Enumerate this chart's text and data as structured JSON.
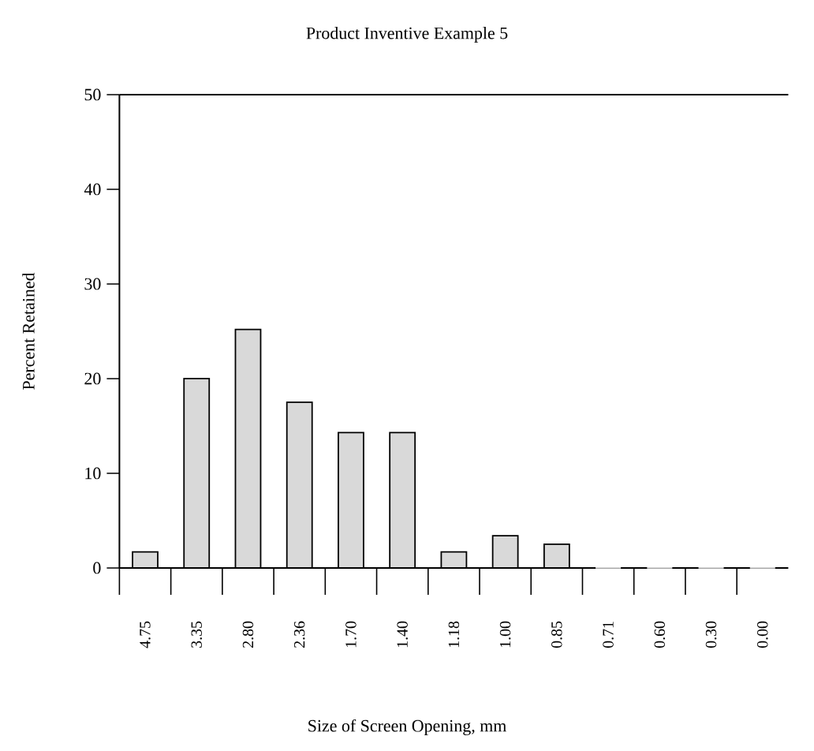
{
  "chart_data": {
    "type": "bar",
    "title": "Product Inventive Example 5",
    "xlabel": "Size of Screen Opening, mm",
    "ylabel": "Percent Retained",
    "categories": [
      "4.75",
      "3.35",
      "2.80",
      "2.36",
      "1.70",
      "1.40",
      "1.18",
      "1.00",
      "0.85",
      "0.71",
      "0.60",
      "0.30",
      "0.00"
    ],
    "values": [
      1.7,
      20,
      25.2,
      17.5,
      14.3,
      14.3,
      1.7,
      3.4,
      2.5,
      0,
      0,
      0,
      0
    ],
    "color": "#d9d9d9",
    "ylim": [
      0,
      50
    ],
    "yticks": [
      0,
      10,
      20,
      30,
      40,
      50
    ],
    "grid": false
  }
}
